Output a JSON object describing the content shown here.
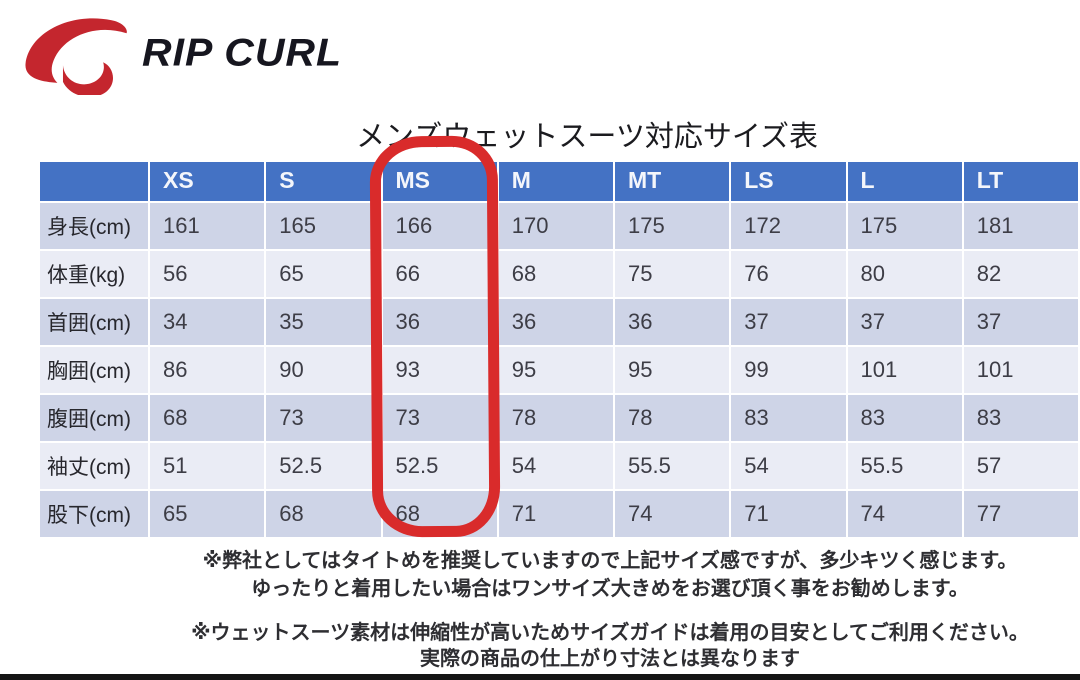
{
  "brand": {
    "name": "RIP CURL"
  },
  "title": "メンズウェットスーツ対応サイズ表",
  "table": {
    "columns": [
      "",
      "XS",
      "S",
      "MS",
      "M",
      "MT",
      "LS",
      "L",
      "LT"
    ],
    "rows": [
      {
        "label": "身長(cm)",
        "values": [
          "161",
          "165",
          "166",
          "170",
          "175",
          "172",
          "175",
          "181"
        ]
      },
      {
        "label": "体重(kg)",
        "values": [
          "56",
          "65",
          "66",
          "68",
          "75",
          "76",
          "80",
          "82"
        ]
      },
      {
        "label": "首囲(cm)",
        "values": [
          "34",
          "35",
          "36",
          "36",
          "36",
          "37",
          "37",
          "37"
        ]
      },
      {
        "label": "胸囲(cm)",
        "values": [
          "86",
          "90",
          "93",
          "95",
          "95",
          "99",
          "101",
          "101"
        ]
      },
      {
        "label": "腹囲(cm)",
        "values": [
          "68",
          "73",
          "73",
          "78",
          "78",
          "83",
          "83",
          "83"
        ]
      },
      {
        "label": "袖丈(cm)",
        "values": [
          "51",
          "52.5",
          "52.5",
          "54",
          "55.5",
          "54",
          "55.5",
          "57"
        ]
      },
      {
        "label": "股下(cm)",
        "values": [
          "65",
          "68",
          "68",
          "71",
          "74",
          "71",
          "74",
          "77"
        ]
      }
    ],
    "highlighted_column": "MS"
  },
  "notes": [
    {
      "line1": "※弊社としてはタイトめを推奨していますので上記サイズ感ですが、多少キツく感じます。",
      "line2": "ゆったりと着用したい場合はワンサイズ大きめをお選び頂く事をお勧めします。"
    },
    {
      "line1": "※ウェットスーツ素材は伸縮性が高いためサイズガイドは着用の目安としてご利用ください。",
      "line2": "実際の商品の仕上がり寸法とは異なります"
    }
  ],
  "colors": {
    "header_bg": "#4472c4",
    "row_dark": "#ced4e7",
    "row_light": "#eaecf5",
    "highlight": "#d92b2b",
    "brand_red": "#c4262e",
    "brand_text": "#16161f"
  }
}
